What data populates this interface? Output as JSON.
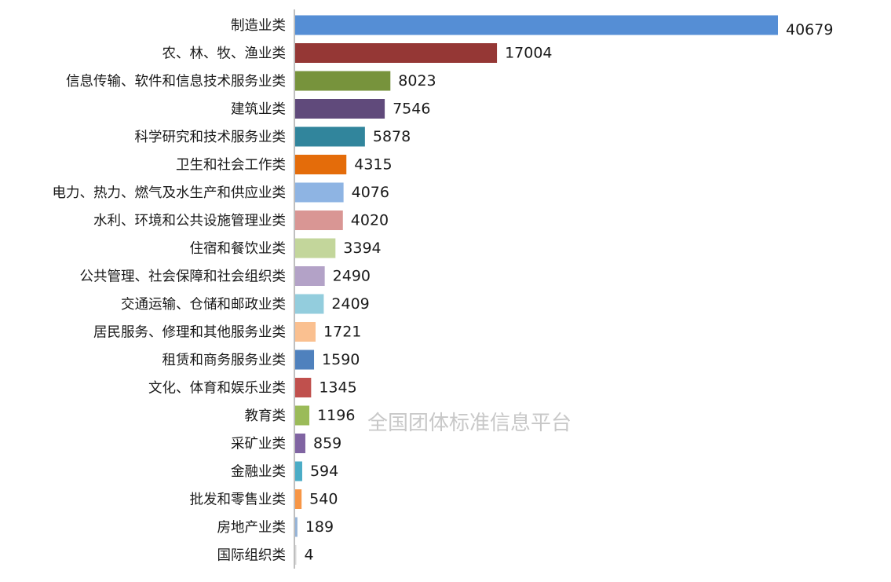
{
  "watermark": "全国团体标准信息平台",
  "chart_data": {
    "type": "bar",
    "orientation": "horizontal",
    "title": "",
    "xlabel": "",
    "ylabel": "",
    "grid": false,
    "categories": [
      "制造业类",
      "农、林、牧、渔业类",
      "信息传输、软件和信息技术服务业类",
      "建筑业类",
      "科学研究和技术服务业类",
      "卫生和社会工作类",
      "电力、热力、燃气及水生产和供应业类",
      "水利、环境和公共设施管理业类",
      "住宿和餐饮业类",
      "公共管理、社会保障和社会组织类",
      "交通运输、仓储和邮政业类",
      "居民服务、修理和其他服务业类",
      "租赁和商务服务业类",
      "文化、体育和娱乐业类",
      "教育类",
      "采矿业类",
      "金融业类",
      "批发和零售业类",
      "房地产业类",
      "国际组织类"
    ],
    "values": [
      40679,
      17004,
      8023,
      7546,
      5878,
      4315,
      4076,
      4020,
      3394,
      2490,
      2409,
      1721,
      1590,
      1345,
      1196,
      859,
      594,
      540,
      189,
      4
    ],
    "colors": [
      "#558ed5",
      "#953735",
      "#77933c",
      "#604a7b",
      "#31859c",
      "#e46c0a",
      "#8eb4e3",
      "#d99694",
      "#c3d69b",
      "#b3a2c7",
      "#93cddd",
      "#fac090",
      "#4f81bd",
      "#c0504d",
      "#9bbb59",
      "#8064a2",
      "#4bacc6",
      "#f79646",
      "#95b3d7",
      "#d9d9d9"
    ],
    "axis_color": "#7f7f7f"
  }
}
